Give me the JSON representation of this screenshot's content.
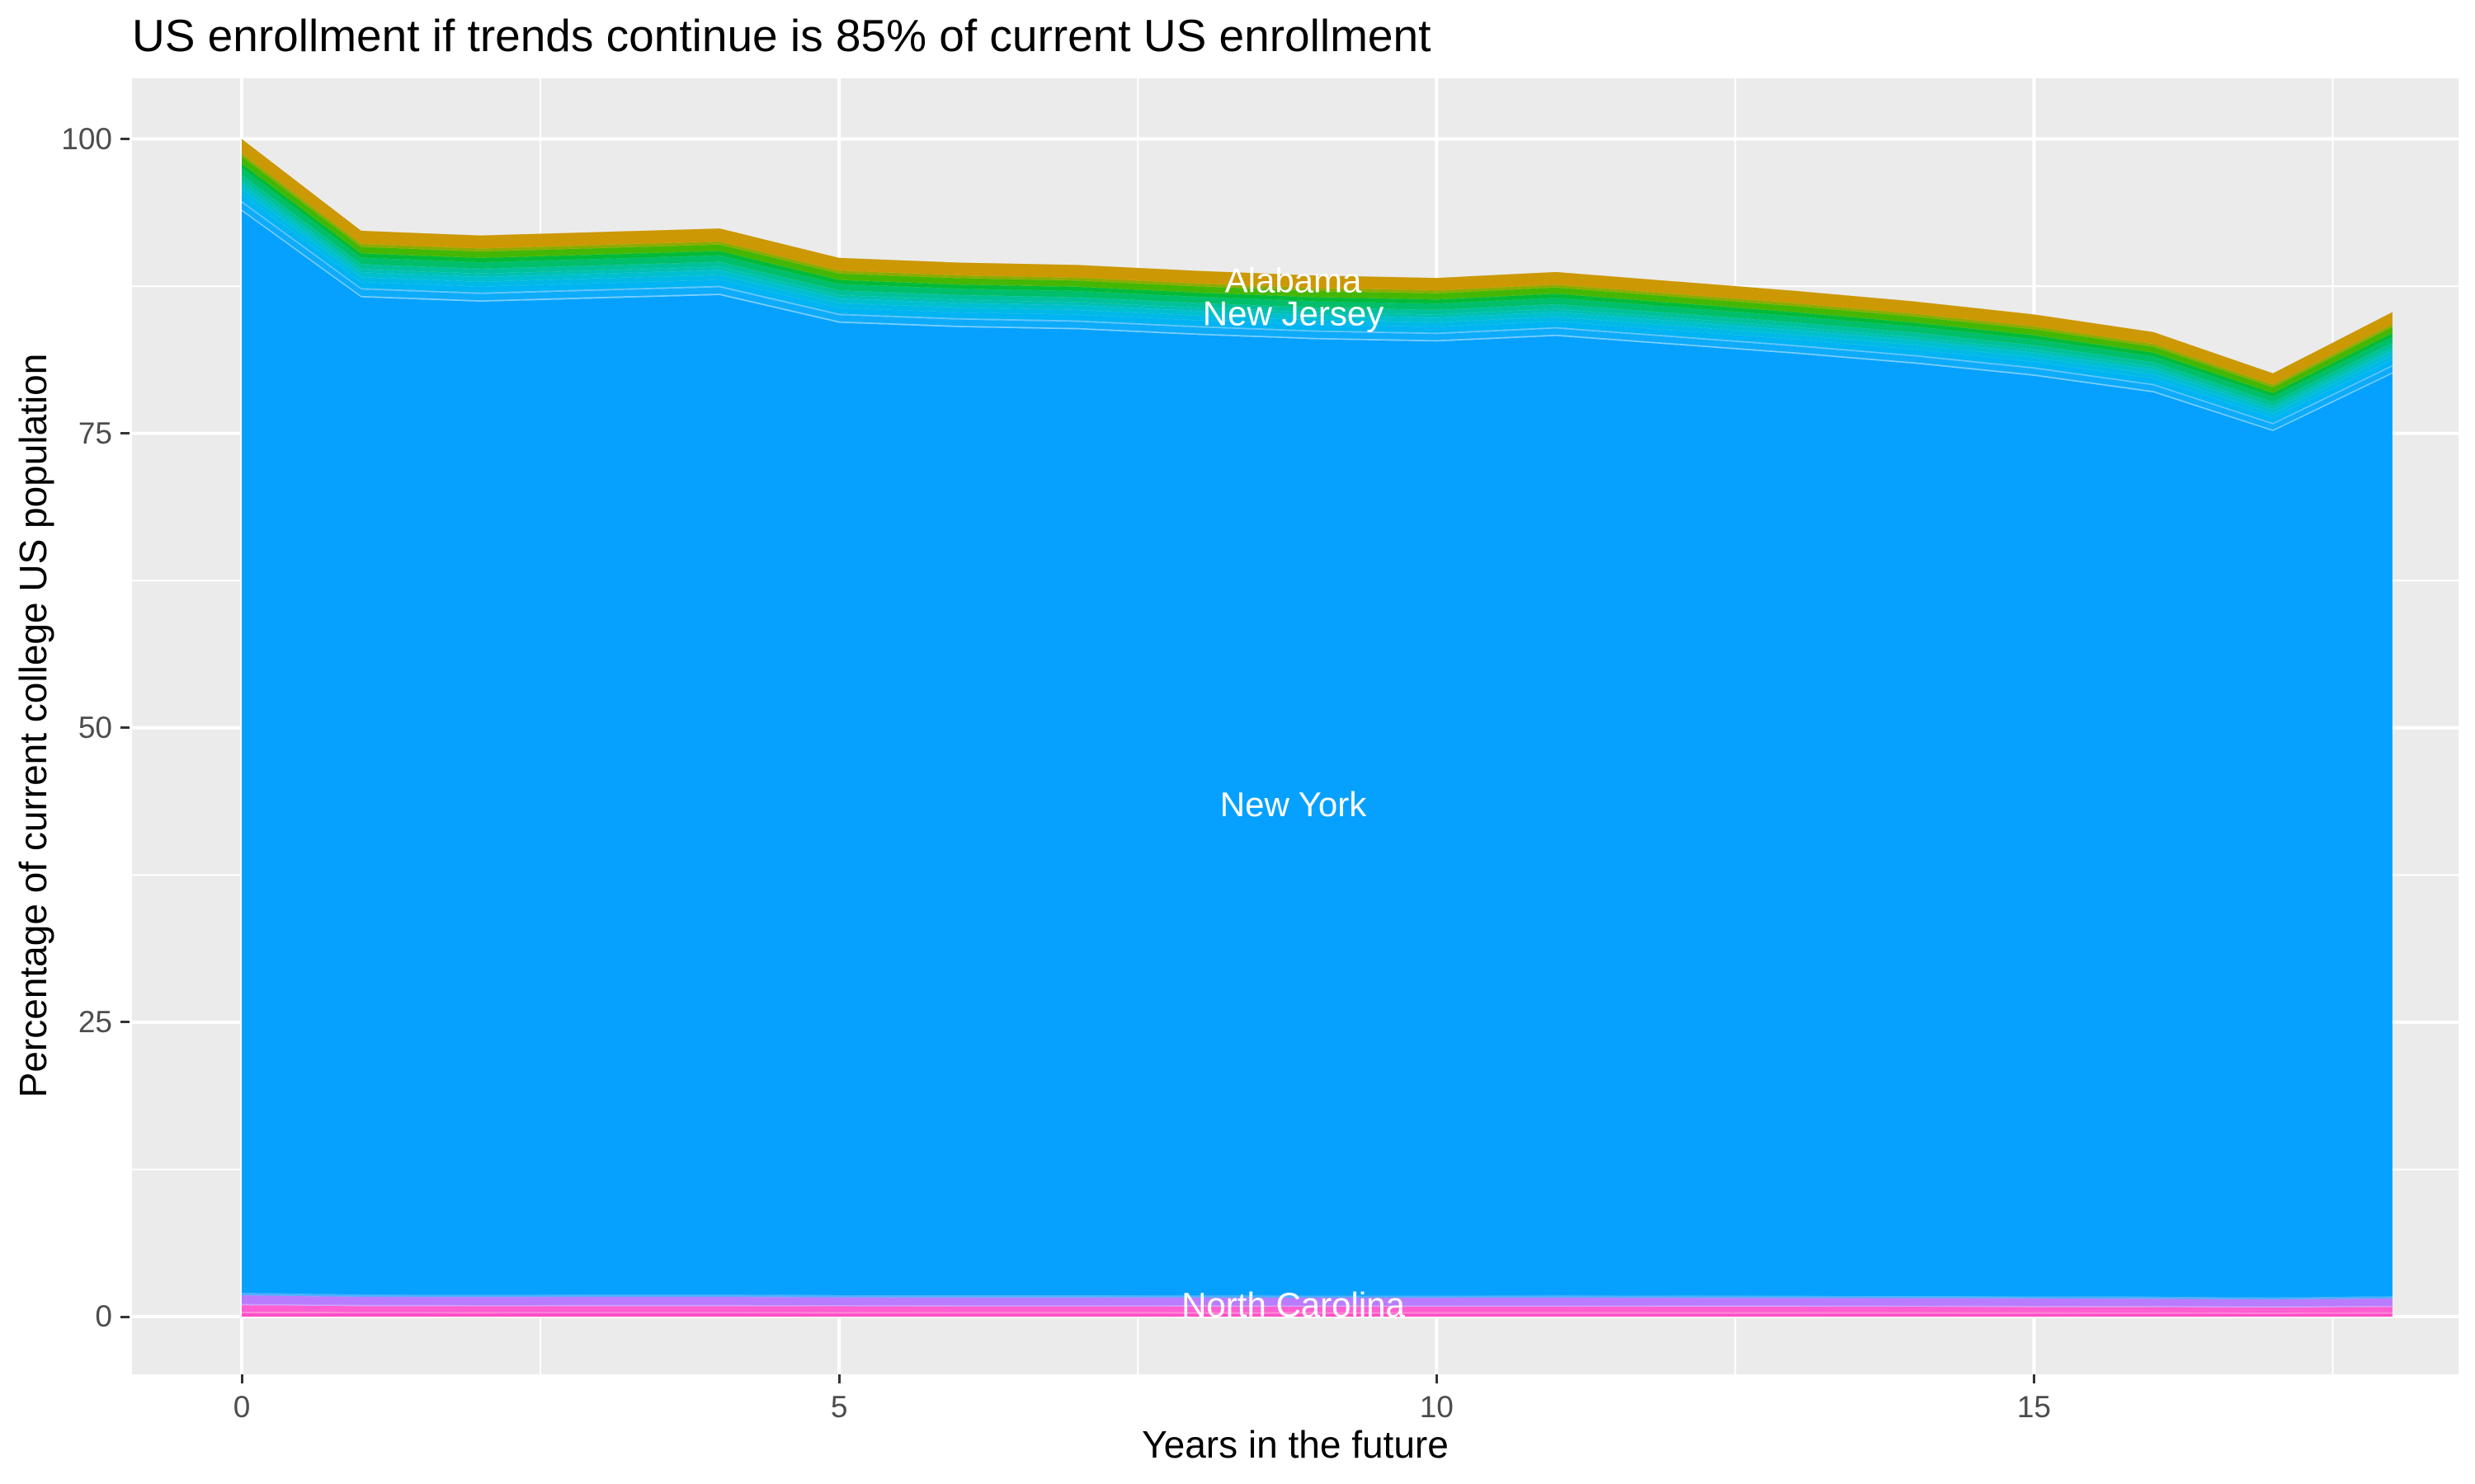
{
  "title": "US enrollment if trends continue is 85% of current US enrollment",
  "axes": {
    "x": {
      "label": "Years in the future",
      "ticks": [
        0,
        5,
        10,
        15
      ],
      "minor": [
        2.5,
        7.5,
        12.5,
        17.5
      ],
      "range": [
        0,
        18
      ]
    },
    "y": {
      "label": "Percentage of current college US population",
      "ticks": [
        0,
        25,
        50,
        75,
        100
      ],
      "minor": [
        12.5,
        37.5,
        62.5,
        87.5
      ],
      "range": [
        0,
        100
      ]
    }
  },
  "colors": {
    "panel_bg": "#EBEBEB",
    "grid_major": "#FFFFFF",
    "grid_minor": "#FFFFFF",
    "tick_mark": "#333333",
    "tick_text": "#4D4D4D",
    "title_text": "#000000",
    "area_label": "#FFFFFF"
  },
  "chart_data": {
    "type": "area",
    "stacked": true,
    "title": "US enrollment if trends continue is 85% of current US enrollment",
    "xlabel": "Years in the future",
    "ylabel": "Percentage of current college US population",
    "xlim": [
      0,
      18
    ],
    "ylim": [
      0,
      100
    ],
    "grid": true,
    "legend": "none",
    "x": [
      0,
      1,
      2,
      3,
      4,
      5,
      6,
      7,
      8,
      9,
      10,
      11,
      12,
      13,
      14,
      15,
      16,
      17,
      18
    ],
    "stack_top_totals": [
      100,
      92.2,
      91.8,
      92.1,
      92.4,
      89.9,
      89.5,
      89.3,
      88.8,
      88.4,
      88.2,
      88.7,
      87.9,
      87.1,
      86.2,
      85.1,
      83.6,
      80.1,
      85.3
    ],
    "layers": [
      {
        "name": "pink-bottom",
        "color": "#FF4FC8",
        "fraction": 0.003
      },
      {
        "name": "pink-light-line",
        "color": "#FF8AD9",
        "fraction": 0.0012
      },
      {
        "name": "north-carolina",
        "color": "#FF5FD0",
        "fraction": 0.0055
      },
      {
        "name": "violet-light-line",
        "color": "#CDA1FF",
        "fraction": 0.001
      },
      {
        "name": "violet",
        "color": "#B97CFE",
        "fraction": 0.0075
      },
      {
        "name": "pale-blue-sliver",
        "color": "#4FAEFF",
        "fraction": 0.002
      },
      {
        "name": "new-york",
        "color": "#06A1FF",
        "fraction": 0.9186
      },
      {
        "name": "light-line-2",
        "color": "#7ACFFF",
        "fraction": 0.0012
      },
      {
        "name": "new-jersey",
        "color": "#0FABFB",
        "fraction": 0.006
      },
      {
        "name": "light-line-1",
        "color": "#63C6FF",
        "fraction": 0.0012
      },
      {
        "name": "azure",
        "color": "#00B3F2",
        "fraction": 0.0055
      },
      {
        "name": "sky",
        "color": "#00B9E6",
        "fraction": 0.0045
      },
      {
        "name": "cyan",
        "color": "#00BFCF",
        "fraction": 0.0045
      },
      {
        "name": "teal-light",
        "color": "#00C0B4",
        "fraction": 0.003
      },
      {
        "name": "teal",
        "color": "#00C19A",
        "fraction": 0.0045
      },
      {
        "name": "emerald",
        "color": "#00BE6A",
        "fraction": 0.006
      },
      {
        "name": "green-dark",
        "color": "#00BA38",
        "fraction": 0.004
      },
      {
        "name": "green",
        "color": "#44B705",
        "fraction": 0.006
      },
      {
        "name": "olive",
        "color": "#8FAB00",
        "fraction": 0.0028
      },
      {
        "name": "alabama-gold",
        "color": "#CC9803",
        "fraction": 0.012
      }
    ],
    "series_labels": [
      {
        "text": "Alabama",
        "t": 8.8,
        "v": 88.0
      },
      {
        "text": "New Jersey",
        "t": 8.8,
        "v": 85.2
      },
      {
        "text": "New York",
        "t": 8.8,
        "v": 43.5
      },
      {
        "text": "North Carolina",
        "t": 8.8,
        "v": 1.0
      }
    ]
  }
}
